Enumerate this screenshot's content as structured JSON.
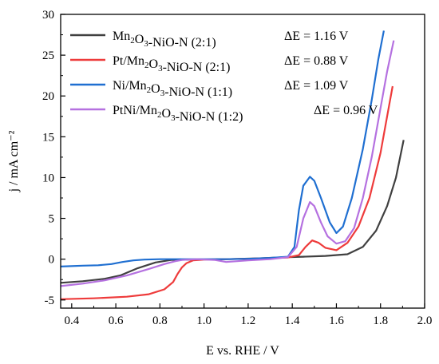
{
  "chart_data": {
    "type": "line",
    "xlabel": "E vs. RHE / V",
    "ylabel": "j / mA cm⁻²",
    "xlim": [
      0.35,
      2.0
    ],
    "ylim": [
      -6,
      30
    ],
    "x_ticks": [
      "0.4",
      "0.6",
      "0.8",
      "1.0",
      "1.2",
      "1.4",
      "1.6",
      "1.8",
      "2.0"
    ],
    "y_ticks": [
      "-5",
      "0",
      "5",
      "10",
      "15",
      "20",
      "25",
      "30"
    ],
    "legend_position": "top-left",
    "series": [
      {
        "name": "Mn₂O₃-NiO-N (2:1)",
        "delta_e": "ΔE = 1.16 V",
        "color": "#404040",
        "x": [
          0.35,
          0.45,
          0.55,
          0.62,
          0.7,
          0.78,
          0.85,
          0.95,
          1.1,
          1.25,
          1.38,
          1.45,
          1.55,
          1.65,
          1.72,
          1.78,
          1.83,
          1.87,
          1.905
        ],
        "y": [
          -2.9,
          -2.7,
          -2.4,
          -2.0,
          -1.1,
          -0.4,
          -0.1,
          -0.05,
          0.0,
          0.1,
          0.25,
          0.3,
          0.4,
          0.6,
          1.5,
          3.5,
          6.5,
          10.0,
          14.6
        ]
      },
      {
        "name": "Pt/Mn₂O₃-NiO-N (2:1)",
        "delta_e": "ΔE = 0.88 V",
        "color": "#ee3b3b",
        "x": [
          0.35,
          0.5,
          0.65,
          0.75,
          0.82,
          0.86,
          0.88,
          0.9,
          0.92,
          0.95,
          1.0,
          1.2,
          1.38,
          1.43,
          1.46,
          1.49,
          1.52,
          1.55,
          1.6,
          1.65,
          1.7,
          1.75,
          1.8,
          1.83,
          1.855
        ],
        "y": [
          -4.9,
          -4.8,
          -4.6,
          -4.3,
          -3.7,
          -2.8,
          -1.8,
          -1.0,
          -0.5,
          -0.15,
          -0.05,
          0.05,
          0.2,
          0.5,
          1.5,
          2.3,
          2.0,
          1.4,
          1.1,
          2.0,
          4.0,
          7.5,
          13.0,
          17.5,
          21.2
        ]
      },
      {
        "name": "Ni/Mn₂O₃-NiO-N (1:1)",
        "delta_e": "ΔE = 1.09 V",
        "color": "#1f6fd1",
        "x": [
          0.35,
          0.45,
          0.52,
          0.58,
          0.63,
          0.68,
          0.73,
          0.8,
          0.9,
          1.0,
          1.1,
          1.2,
          1.3,
          1.38,
          1.41,
          1.43,
          1.45,
          1.48,
          1.5,
          1.53,
          1.57,
          1.6,
          1.63,
          1.67,
          1.72,
          1.76,
          1.79,
          1.815
        ],
        "y": [
          -0.9,
          -0.8,
          -0.75,
          -0.6,
          -0.35,
          -0.15,
          -0.05,
          0.0,
          0.0,
          0.0,
          0.0,
          0.05,
          0.15,
          0.3,
          1.5,
          6.0,
          9.0,
          10.1,
          9.6,
          7.5,
          4.5,
          3.2,
          4.0,
          7.5,
          13.5,
          19.5,
          24.5,
          28.0
        ]
      },
      {
        "name": "PtNi/Mn₂O₃-NiO-N (1:2)",
        "delta_e": "ΔE = 0.96 V",
        "color": "#b571e0",
        "x": [
          0.35,
          0.45,
          0.55,
          0.65,
          0.75,
          0.82,
          0.87,
          0.9,
          0.93,
          0.97,
          1.05,
          1.1,
          1.2,
          1.3,
          1.38,
          1.42,
          1.45,
          1.48,
          1.5,
          1.53,
          1.56,
          1.6,
          1.64,
          1.68,
          1.72,
          1.76,
          1.8,
          1.83,
          1.86
        ],
        "y": [
          -3.3,
          -3.0,
          -2.6,
          -2.0,
          -1.2,
          -0.6,
          -0.25,
          -0.1,
          -0.05,
          0.0,
          -0.1,
          -0.35,
          -0.15,
          0.0,
          0.25,
          1.5,
          5.0,
          7.0,
          6.5,
          4.5,
          2.8,
          1.9,
          2.2,
          3.8,
          7.5,
          12.5,
          18.5,
          23.0,
          26.8
        ]
      }
    ]
  }
}
